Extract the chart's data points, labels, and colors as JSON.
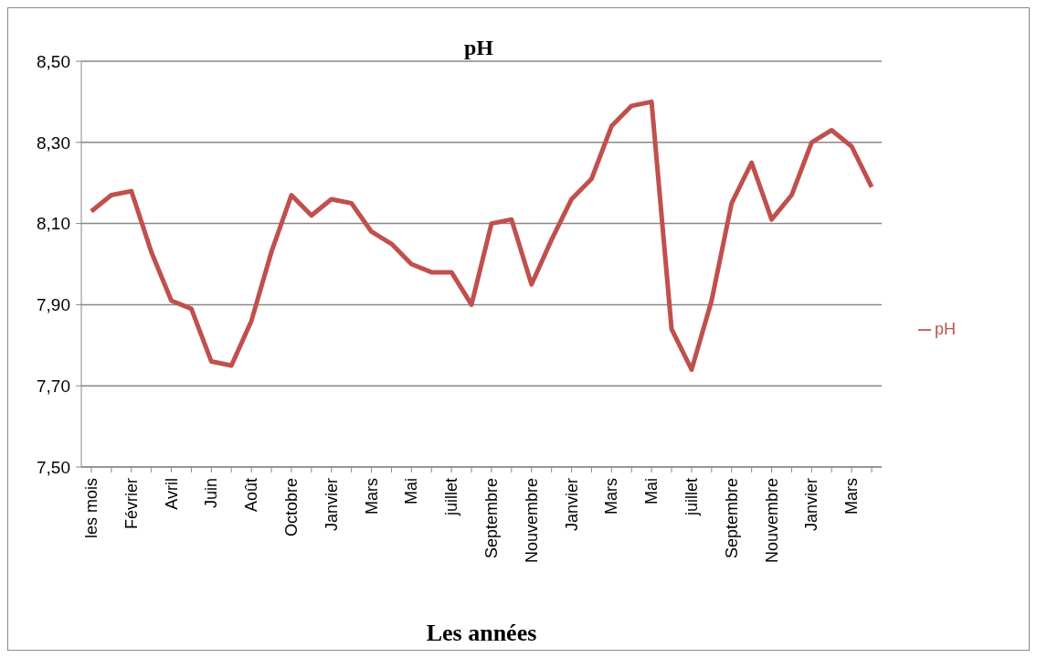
{
  "chart_data": {
    "type": "line",
    "title": "pH",
    "xlabel": "Les années",
    "categories": [
      "les mois",
      null,
      "Février",
      null,
      "Avril",
      null,
      "Juin",
      null,
      "Août",
      null,
      "Octobre",
      null,
      "Janvier",
      null,
      "Mars",
      null,
      "Mai",
      null,
      "juillet",
      null,
      "Septembre",
      null,
      "Nouvembre",
      null,
      "Janvier",
      null,
      "Mars",
      null,
      "Mai",
      null,
      "juillet",
      null,
      "Septembre",
      null,
      "Nouvembre",
      null,
      "Janvier",
      null,
      "Mars",
      null
    ],
    "series": [
      {
        "name": "pH",
        "color": "#c0504d",
        "values": [
          8.13,
          8.17,
          8.18,
          8.03,
          7.91,
          7.89,
          7.76,
          7.75,
          7.86,
          8.03,
          8.17,
          8.12,
          8.16,
          8.15,
          8.08,
          8.05,
          8.0,
          7.98,
          7.98,
          7.9,
          8.1,
          8.11,
          7.95,
          8.06,
          8.16,
          8.21,
          8.34,
          8.39,
          8.4,
          7.84,
          7.74,
          7.91,
          8.15,
          8.25,
          8.11,
          8.17,
          8.3,
          8.33,
          8.29,
          8.19
        ]
      }
    ],
    "ylim": [
      7.5,
      8.5
    ],
    "yticks": [
      {
        "value": 7.5,
        "label": "7,50"
      },
      {
        "value": 7.7,
        "label": "7,70"
      },
      {
        "value": 7.9,
        "label": "7,90"
      },
      {
        "value": 8.1,
        "label": "8,10"
      },
      {
        "value": 8.3,
        "label": "8,30"
      },
      {
        "value": 8.5,
        "label": "8,50"
      }
    ],
    "grid": "y",
    "legend": "right",
    "marker": "none",
    "line_style": "solid"
  }
}
